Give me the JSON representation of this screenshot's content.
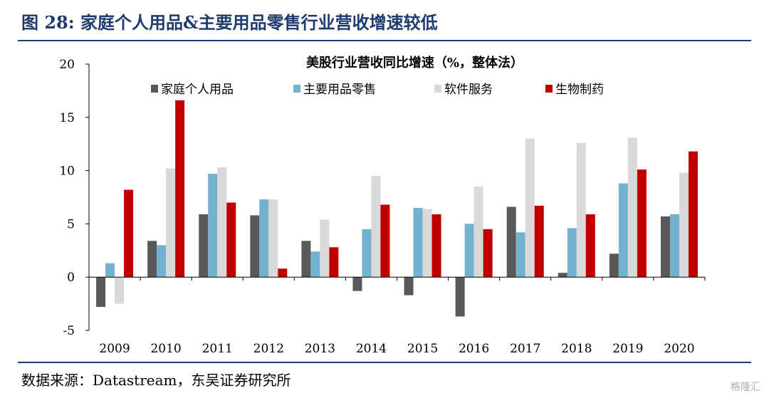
{
  "header": {
    "figure_title": "图 28:  家庭个人用品&主要用品零售行业营收增速较低"
  },
  "footer": {
    "source": "数据来源：Datastream，东吴证券研究所",
    "watermark": "格隆汇"
  },
  "chart_data": {
    "type": "bar",
    "title": "美股行业营收同比增速（%，整体法）",
    "categories": [
      "2009",
      "2010",
      "2011",
      "2012",
      "2013",
      "2014",
      "2015",
      "2016",
      "2017",
      "2018",
      "2019",
      "2020"
    ],
    "series": [
      {
        "name": "家庭个人用品",
        "color": "#595959",
        "values": [
          -2.8,
          3.4,
          5.9,
          5.8,
          3.4,
          -1.3,
          -1.7,
          -3.7,
          6.6,
          0.4,
          2.2,
          5.7
        ]
      },
      {
        "name": "主要用品零售",
        "color": "#72b2cf",
        "values": [
          1.3,
          3.0,
          9.7,
          7.3,
          2.4,
          4.5,
          6.5,
          5.0,
          4.2,
          4.6,
          8.8,
          5.9
        ]
      },
      {
        "name": "软件服务",
        "color": "#d9d9d9",
        "values": [
          -2.5,
          10.2,
          10.3,
          7.3,
          5.4,
          9.5,
          6.4,
          8.5,
          13.0,
          12.6,
          13.1,
          9.8
        ]
      },
      {
        "name": "生物制药",
        "color": "#c00000",
        "values": [
          8.2,
          16.6,
          7.0,
          0.8,
          2.8,
          6.8,
          5.9,
          4.5,
          6.7,
          5.9,
          10.1,
          11.8
        ]
      }
    ],
    "ylim": [
      -5,
      20
    ],
    "yticks": [
      -5,
      0,
      5,
      10,
      15,
      20
    ],
    "xlabel": "",
    "ylabel": "",
    "legend": "top",
    "grid": false
  }
}
